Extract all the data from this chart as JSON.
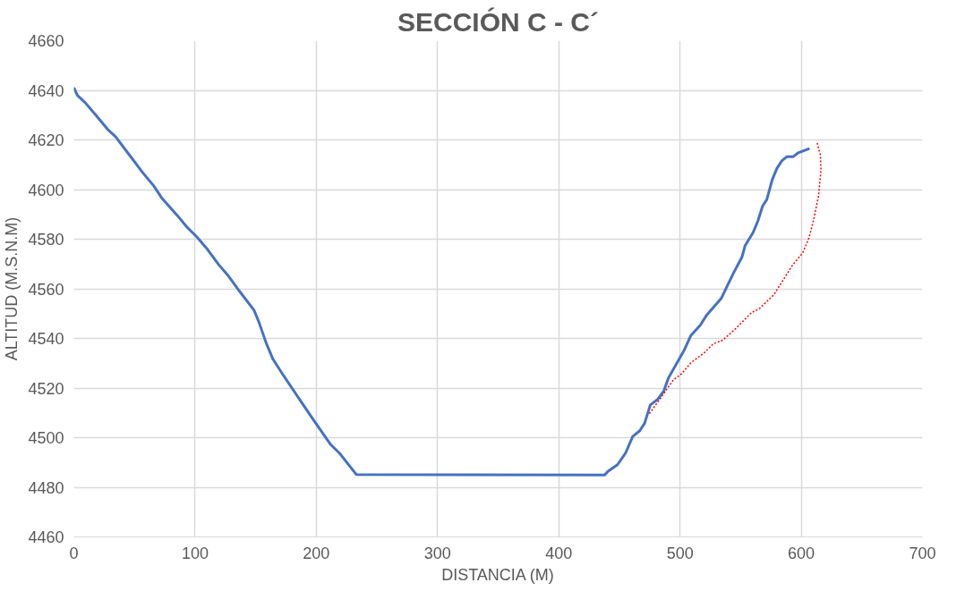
{
  "chart_data": {
    "type": "line",
    "title": "SECCIÓN C - C´",
    "xlabel": "DISTANCIA (M)",
    "ylabel": "ALTITUD (M.S.N.M)",
    "xlim": [
      0,
      700
    ],
    "xticks": [
      0,
      100,
      200,
      300,
      400,
      500,
      600,
      700
    ],
    "ylim": [
      4460,
      4660
    ],
    "yticks": [
      4460,
      4480,
      4500,
      4520,
      4540,
      4560,
      4580,
      4600,
      4620,
      4640,
      4660
    ],
    "grid": true,
    "marker": "none",
    "series": [
      {
        "color": "#4472c4",
        "line_style": "solid",
        "x": [
          0,
          2.9,
          9.4,
          18.6,
          27.8,
          34.4,
          46.2,
          56.7,
          65.9,
          72.4,
          85.6,
          93.4,
          101.3,
          109.2,
          119.7,
          127.6,
          136.7,
          148.6,
          152.5,
          159,
          164.3,
          172.2,
          187.9,
          198.4,
          211.5,
          219.4,
          233.1,
          437.9,
          440.5,
          448.4,
          455,
          461,
          466.8,
          470.8,
          475.5,
          481.3,
          486.6,
          490.5,
          503.7,
          509,
          516.8,
          522.1,
          534,
          539.2,
          544.5,
          551.1,
          553.7,
          560.3,
          564.2,
          568.2,
          571.6,
          576.1,
          580,
          584,
          588,
          593.2,
          597.1,
          606.8
        ],
        "values": [
          4641.1,
          4638,
          4635,
          4629.7,
          4624.3,
          4621.3,
          4613.7,
          4606.9,
          4601.5,
          4596.7,
          4589.4,
          4584.8,
          4581,
          4576.5,
          4569.6,
          4565.1,
          4559,
          4551.4,
          4546.8,
          4537.7,
          4531.6,
          4525.6,
          4514.2,
          4506.6,
          4497.4,
          4493.6,
          4485.1,
          4485,
          4486.4,
          4489.1,
          4493.7,
          4500.5,
          4502.8,
          4505.8,
          4513.2,
          4515.3,
          4518.8,
          4524.1,
          4535.5,
          4541.2,
          4545.4,
          4549.5,
          4556.1,
          4561.4,
          4566.7,
          4572.8,
          4577.4,
          4582.7,
          4587.3,
          4593.4,
          4596,
          4604,
          4608.6,
          4611.6,
          4613.2,
          4613.2,
          4614.7,
          4616.5
        ]
      },
      {
        "color": "#ff0000",
        "line_style": "dotted",
        "x": [
          474.7,
          482.6,
          494.5,
          501,
          509,
          519.5,
          527.4,
          535.3,
          545.8,
          559,
          565.5,
          577.4,
          585.3,
          593.2,
          601,
          606.3,
          610.3,
          614.2,
          616.3,
          615.8,
          612.9
        ],
        "values": [
          4509.7,
          4515,
          4523.3,
          4525.6,
          4530.2,
          4534,
          4537.8,
          4539.3,
          4543.9,
          4550.4,
          4552,
          4557.6,
          4563.7,
          4569.8,
          4574.3,
          4580.4,
          4588,
          4597.2,
          4607.8,
          4613.9,
          4619.2
        ]
      }
    ]
  }
}
